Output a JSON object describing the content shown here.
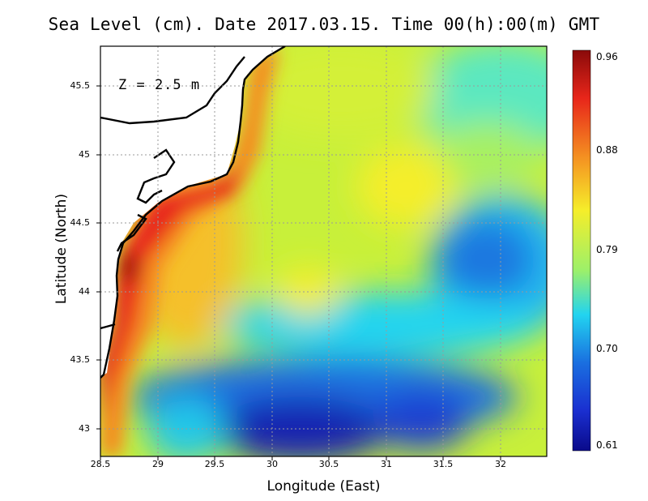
{
  "title": "Sea Level (cm). Date 2017.03.15. Time 00(h):00(m) GMT",
  "annotation": "Z = 2.5 m",
  "xlabel": "Longitude (East)",
  "ylabel": "Latitude (North)",
  "colors": {
    "deep_blue": "#0a0a8a",
    "blue": "#1a6fe0",
    "cyan": "#22d4f0",
    "green_yellow": "#b8f04a",
    "yellow": "#f5ee2a",
    "orange": "#f59a22",
    "red": "#e8261a",
    "dark_red": "#8a0a0a",
    "land": "#ffffff",
    "coastline": "#000000"
  },
  "chart_data": {
    "type": "heatmap",
    "title": "Sea Level (cm). Date 2017.03.15. Time 00(h):00(m) GMT",
    "xlabel": "Longitude (East)",
    "ylabel": "Latitude (North)",
    "xlim": [
      28.5,
      32.4
    ],
    "ylim": [
      42.8,
      45.8
    ],
    "x_ticks": [
      "28.5",
      "29",
      "29.5",
      "30",
      "30.5",
      "31",
      "31.5",
      "32"
    ],
    "y_ticks": [
      "43",
      "43.5",
      "44",
      "44.5",
      "45",
      "45.5"
    ],
    "colorbar": {
      "min": 0.61,
      "max": 0.96,
      "ticks": [
        "0.96",
        "0.88",
        "0.79",
        "0.70",
        "0.61"
      ]
    },
    "grid": true,
    "annotation": "Z = 2.5 m"
  }
}
